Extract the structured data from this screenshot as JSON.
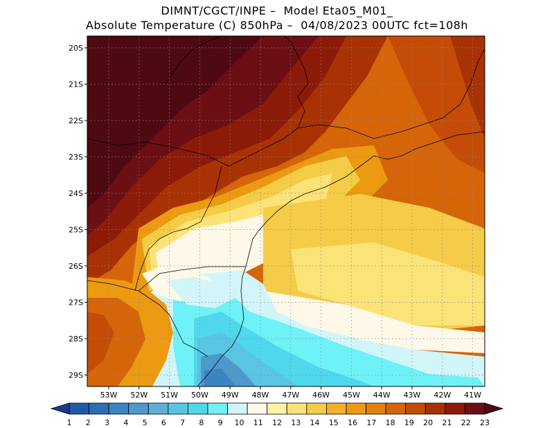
{
  "header": {
    "line1": "DIMNT/CGCT/INPE –  Model Eta05_M01_",
    "line2": "Absolute Temperature (C) 850hPa –  04/08/2023 00UTC fct=108h"
  },
  "map": {
    "lat_labels": [
      "20S",
      "21S",
      "22S",
      "23S",
      "24S",
      "25S",
      "26S",
      "27S",
      "28S",
      "29S"
    ],
    "lon_labels": [
      "53W",
      "52W",
      "51W",
      "50W",
      "49W",
      "48W",
      "47W",
      "46W",
      "45W",
      "44W",
      "43W",
      "42W",
      "41W"
    ],
    "grid": "dotted"
  },
  "colorbar": {
    "labels": [
      "1",
      "2",
      "3",
      "4",
      "5",
      "6",
      "7",
      "8",
      "9",
      "10",
      "11",
      "12",
      "13",
      "14",
      "15",
      "16",
      "17",
      "18",
      "19",
      "20",
      "21",
      "22",
      "23"
    ],
    "colors": [
      "#1b3a8c",
      "#2159a6",
      "#2b6fb5",
      "#3b84c2",
      "#4c99cc",
      "#5fb0d6",
      "#58c6e3",
      "#4fd8ec",
      "#6ff2f7",
      "#d2f5fa",
      "#fdf8e8",
      "#fdf2a6",
      "#fbe378",
      "#f5cc48",
      "#f1b228",
      "#ec9a12",
      "#e3810c",
      "#d6650a",
      "#c44c06",
      "#a83204",
      "#8c1a08",
      "#6c0f14",
      "#4e0a12"
    ]
  }
}
